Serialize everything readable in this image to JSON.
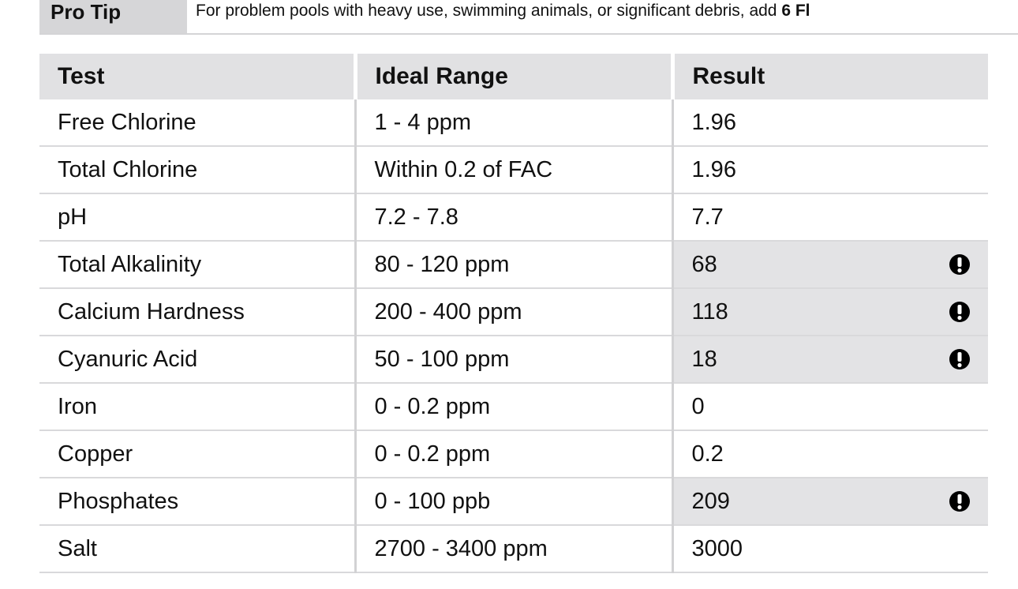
{
  "pro_tip": {
    "label": "Pro Tip",
    "text": "For problem pools with heavy use, swimming animals, or significant debris, add",
    "bold": "6 Fl"
  },
  "table": {
    "headers": [
      "Test",
      "Ideal Range",
      "Result"
    ],
    "rows": [
      {
        "cells": [
          "Free Chlorine",
          "1 - 4 ppm",
          "1.96"
        ],
        "flag": false
      },
      {
        "cells": [
          "Total Chlorine",
          "Within 0.2 of FAC",
          "1.96"
        ],
        "flag": false
      },
      {
        "cells": [
          "pH",
          "7.2 - 7.8",
          "7.7"
        ],
        "flag": false
      },
      {
        "cells": [
          "Total Alkalinity",
          "80 - 120 ppm",
          "68"
        ],
        "flag": true
      },
      {
        "cells": [
          "Calcium Hardness",
          "200 - 400 ppm",
          "118"
        ],
        "flag": true
      },
      {
        "cells": [
          "Cyanuric Acid",
          "50 - 100 ppm",
          "18"
        ],
        "flag": true
      },
      {
        "cells": [
          "Iron",
          "0 - 0.2 ppm",
          "0"
        ],
        "flag": false
      },
      {
        "cells": [
          "Copper",
          "0 - 0.2 ppm",
          "0.2"
        ],
        "flag": false
      },
      {
        "cells": [
          "Phosphates",
          "0 - 100 ppb",
          "209"
        ],
        "flag": true
      },
      {
        "cells": [
          "Salt",
          "2700 - 3400 ppm",
          "3000"
        ],
        "flag": false
      }
    ]
  }
}
